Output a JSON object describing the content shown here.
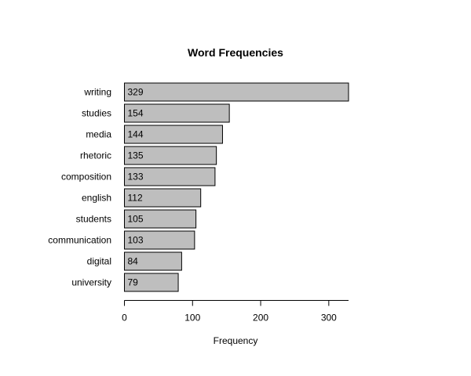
{
  "chart_data": {
    "type": "bar",
    "orientation": "horizontal",
    "title": "Word Frequencies",
    "xlabel": "Frequency",
    "ylabel": "",
    "categories": [
      "writing",
      "studies",
      "media",
      "rhetoric",
      "composition",
      "english",
      "students",
      "communication",
      "digital",
      "university"
    ],
    "values": [
      329,
      154,
      144,
      135,
      133,
      112,
      105,
      103,
      84,
      79
    ],
    "data_labels": [
      "329",
      "154",
      "144",
      "135",
      "133",
      "112",
      "105",
      "103",
      "84",
      "79"
    ],
    "xlim": [
      0,
      329
    ],
    "x_ticks": [
      0,
      100,
      200,
      300
    ],
    "x_tick_labels": [
      "0",
      "100",
      "200",
      "300"
    ],
    "grid": false,
    "legend": "none",
    "colors": {
      "bar_fill": "#bebebe",
      "bar_stroke": "#000000",
      "axis": "#000000",
      "text": "#000000",
      "background": "#ffffff"
    }
  }
}
